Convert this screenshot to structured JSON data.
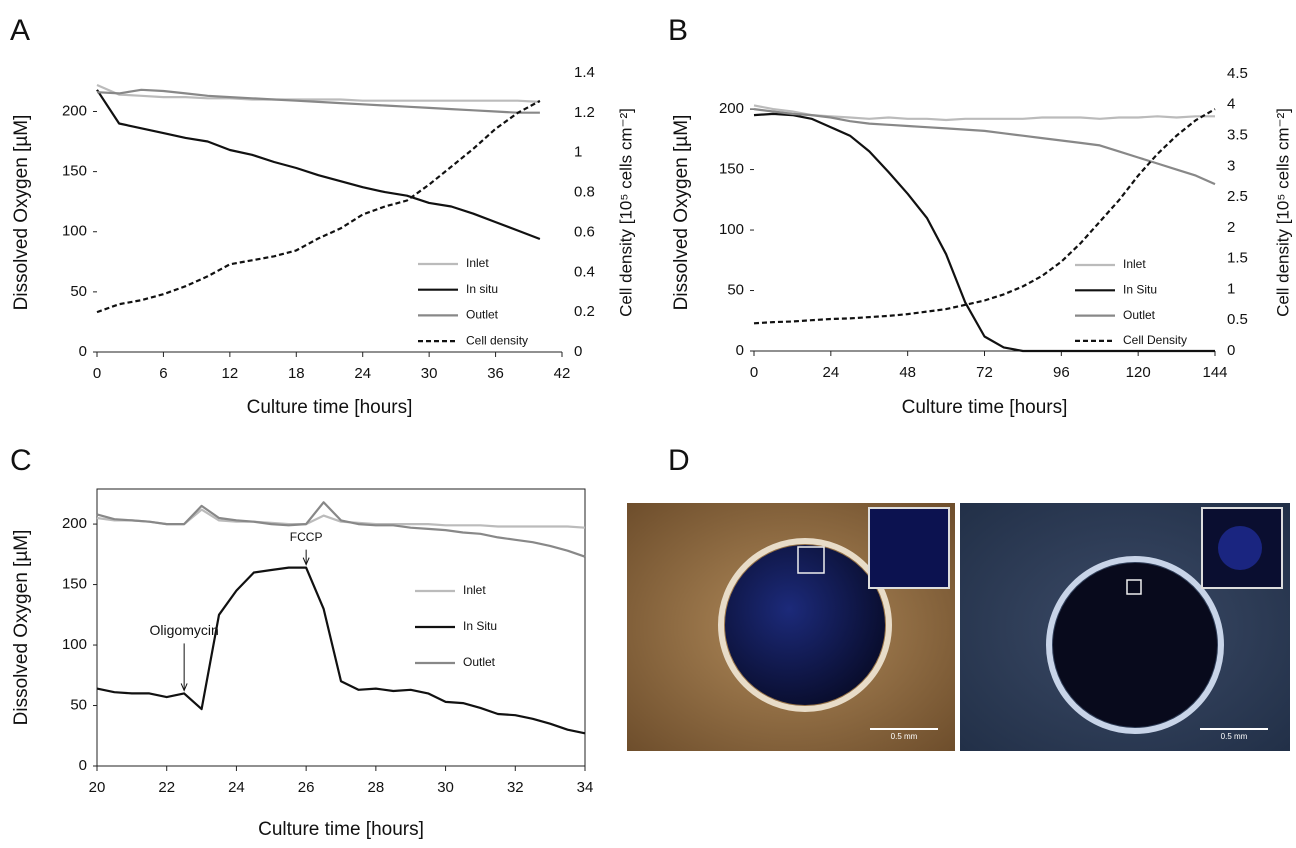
{
  "chart_data": [
    {
      "type": "line",
      "label": "A",
      "xlabel": "Culture time [hours]",
      "ylabel": "Dissolved Oxygen [µM]",
      "y2label": "Cell density [10⁵ cells cm⁻²]",
      "x": [
        0,
        2,
        4,
        6,
        8,
        10,
        12,
        14,
        16,
        18,
        20,
        22,
        24,
        26,
        28,
        30,
        32,
        34,
        36,
        38,
        40
      ],
      "xlim": [
        0,
        42
      ],
      "xticks": [
        0,
        6,
        12,
        18,
        24,
        30,
        36,
        42
      ],
      "ylim": [
        0,
        232
      ],
      "yticks": [
        0,
        50,
        100,
        150,
        200
      ],
      "y2lim": [
        0,
        1.4
      ],
      "y2ticks": [
        0,
        0.2,
        0.4,
        0.6,
        0.8,
        1,
        1.2,
        1.4
      ],
      "legend": "lower right",
      "series": [
        {
          "name": "Inlet",
          "color": "#bbbbbb",
          "values": [
            222,
            214,
            213,
            212,
            212,
            211,
            211,
            210,
            210,
            210,
            210,
            210,
            209,
            209,
            209,
            209,
            209,
            209,
            209,
            209,
            208
          ]
        },
        {
          "name": "In situ",
          "color": "#111111",
          "values": [
            218,
            190,
            186,
            182,
            178,
            175,
            168,
            164,
            158,
            153,
            147,
            142,
            137,
            133,
            130,
            124,
            121,
            115,
            108,
            101,
            94
          ]
        },
        {
          "name": "Outlet",
          "color": "#888888",
          "values": [
            216,
            215,
            218,
            217,
            215,
            213,
            212,
            211,
            210,
            209,
            208,
            207,
            206,
            205,
            204,
            203,
            202,
            201,
            200,
            199,
            199
          ]
        },
        {
          "name": "Cell density",
          "color": "#111111",
          "dashed": true,
          "axis": "y2",
          "values": [
            0.2,
            0.24,
            0.26,
            0.29,
            0.33,
            0.38,
            0.44,
            0.46,
            0.48,
            0.51,
            0.57,
            0.62,
            0.69,
            0.73,
            0.76,
            0.84,
            0.93,
            1.02,
            1.12,
            1.2,
            1.26
          ]
        }
      ]
    },
    {
      "type": "line",
      "label": "B",
      "xlabel": "Culture time [hours]",
      "ylabel": "Dissolved Oxygen [µM]",
      "y2label": "Cell density [10⁵ cells cm⁻²]",
      "x": [
        0,
        6,
        12,
        18,
        24,
        30,
        36,
        42,
        48,
        54,
        60,
        66,
        72,
        78,
        84,
        90,
        96,
        102,
        108,
        114,
        120,
        126,
        132,
        138,
        144
      ],
      "xlim": [
        0,
        144
      ],
      "xticks": [
        0,
        24,
        48,
        72,
        96,
        120,
        144
      ],
      "ylim": [
        0,
        229
      ],
      "yticks": [
        0,
        50,
        100,
        150,
        200
      ],
      "y2lim": [
        0,
        4.5
      ],
      "y2ticks": [
        0,
        0.5,
        1,
        1.5,
        2,
        2.5,
        3,
        3.5,
        4,
        4.5
      ],
      "legend": "lower right",
      "series": [
        {
          "name": "Inlet",
          "color": "#bbbbbb",
          "values": [
            203,
            200,
            198,
            195,
            194,
            193,
            192,
            193,
            192,
            192,
            191,
            192,
            192,
            192,
            192,
            193,
            193,
            193,
            192,
            193,
            193,
            194,
            193,
            194,
            194
          ]
        },
        {
          "name": "In Situ",
          "color": "#111111",
          "values": [
            195,
            196,
            195,
            192,
            185,
            178,
            165,
            148,
            130,
            110,
            80,
            40,
            12,
            3,
            0,
            0,
            0,
            0,
            0,
            0,
            0,
            0,
            0,
            0,
            0
          ]
        },
        {
          "name": "Outlet",
          "color": "#888888",
          "values": [
            200,
            198,
            196,
            195,
            193,
            190,
            188,
            187,
            186,
            185,
            184,
            183,
            182,
            180,
            178,
            176,
            174,
            172,
            170,
            165,
            160,
            155,
            150,
            145,
            138
          ]
        },
        {
          "name": "Cell Density",
          "color": "#111111",
          "dashed": true,
          "axis": "y2",
          "values": [
            0.45,
            0.47,
            0.48,
            0.5,
            0.52,
            0.53,
            0.55,
            0.57,
            0.6,
            0.64,
            0.68,
            0.75,
            0.82,
            0.92,
            1.05,
            1.22,
            1.45,
            1.75,
            2.1,
            2.45,
            2.85,
            3.2,
            3.5,
            3.75,
            3.93
          ]
        }
      ]
    },
    {
      "type": "line",
      "label": "C",
      "xlabel": "Culture time [hours]",
      "ylabel": "Dissolved Oxygen [µM]",
      "x": [
        20,
        20.5,
        21,
        21.5,
        22,
        22.5,
        23,
        23.5,
        24,
        24.5,
        25,
        25.5,
        26,
        26.5,
        27,
        27.5,
        28,
        28.5,
        29,
        29.5,
        30,
        30.5,
        31,
        31.5,
        32,
        32.5,
        33,
        33.5,
        34
      ],
      "xlim": [
        20,
        34
      ],
      "xticks": [
        20,
        22,
        24,
        26,
        28,
        30,
        32,
        34
      ],
      "ylim": [
        0,
        229
      ],
      "yticks": [
        0,
        50,
        100,
        150,
        200
      ],
      "legend": "right",
      "annotations": [
        {
          "text": "Oligomycin",
          "x": 22.5,
          "y": 60
        },
        {
          "text": "FCCP",
          "x": 26,
          "y": 164
        }
      ],
      "series": [
        {
          "name": "Inlet",
          "color": "#bbbbbb",
          "values": [
            205,
            203,
            203,
            202,
            200,
            200,
            212,
            203,
            202,
            202,
            201,
            200,
            200,
            207,
            202,
            201,
            200,
            200,
            200,
            200,
            199,
            199,
            199,
            198,
            198,
            198,
            198,
            198,
            197
          ]
        },
        {
          "name": "In Situ",
          "color": "#111111",
          "values": [
            64,
            61,
            60,
            60,
            57,
            60,
            47,
            125,
            145,
            160,
            162,
            164,
            164,
            130,
            70,
            63,
            64,
            62,
            63,
            60,
            53,
            52,
            48,
            43,
            42,
            39,
            35,
            30,
            27
          ]
        },
        {
          "name": "Outlet",
          "color": "#888888",
          "values": [
            208,
            204,
            203,
            202,
            200,
            200,
            215,
            205,
            203,
            202,
            200,
            199,
            200,
            218,
            203,
            200,
            199,
            199,
            197,
            196,
            195,
            193,
            192,
            189,
            187,
            185,
            182,
            178,
            173
          ]
        }
      ]
    }
  ],
  "panel_d": {
    "label": "D",
    "images": [
      {
        "scale_bar": "0.5 mm"
      },
      {
        "scale_bar": "0.5 mm"
      }
    ]
  }
}
